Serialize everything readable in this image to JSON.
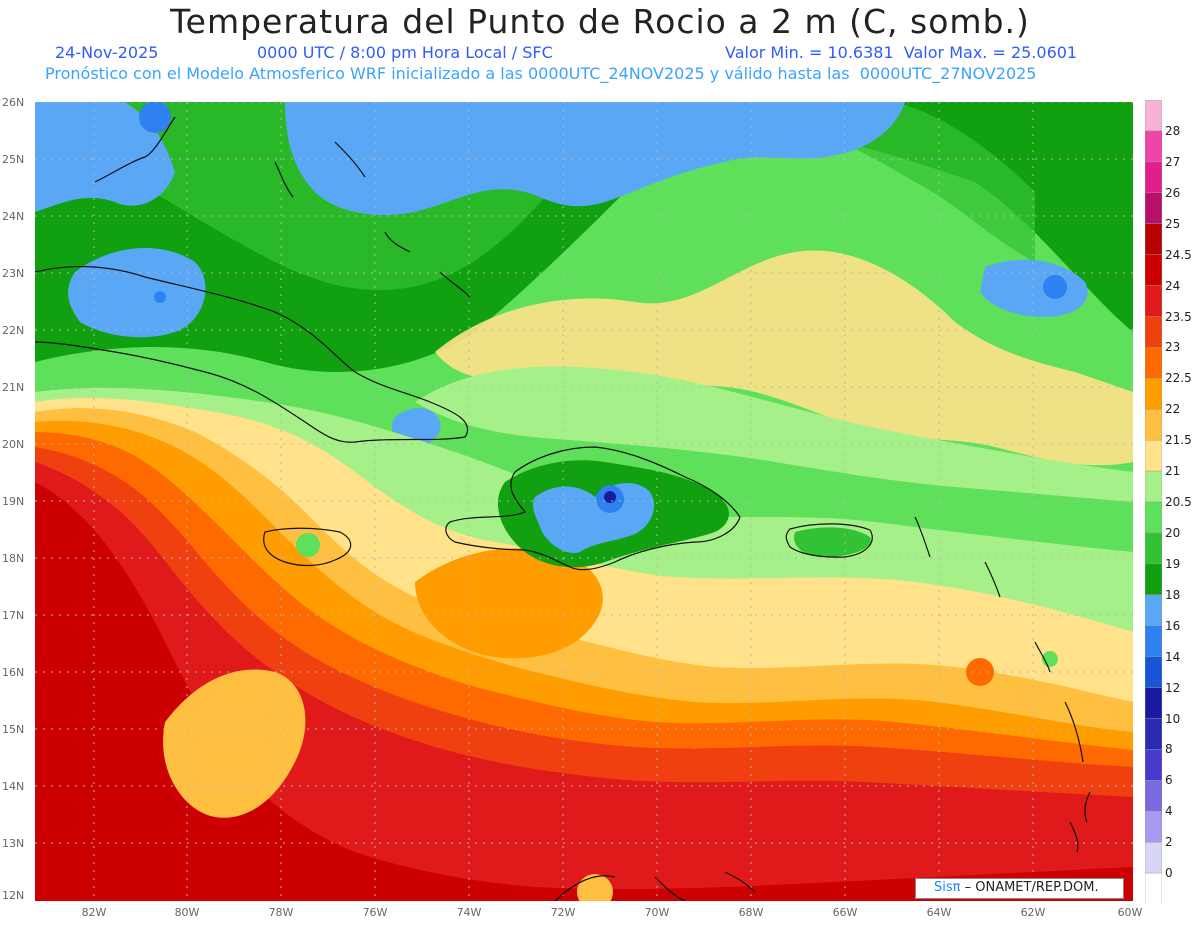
{
  "header": {
    "title": "Temperatura del Punto de Rocio a 2 m (C, somb.)",
    "date": "24-Nov-2025",
    "time": "0000 UTC / 8:00 pm Hora Local / SFC",
    "minmax": "Valor Min. = 10.6381  Valor Max. = 25.0601",
    "model": "Pronóstico con el Modelo Atmosferico WRF inicializado a las 0000UTC_24NOV2025 y válido hasta las  0000UTC_27NOV2025"
  },
  "axes": {
    "lat_labels": [
      "26N",
      "25N",
      "24N",
      "23N",
      "22N",
      "21N",
      "20N",
      "19N",
      "18N",
      "17N",
      "16N",
      "15N",
      "14N",
      "13N",
      "12N"
    ],
    "lon_labels": [
      "82W",
      "80W",
      "78W",
      "76W",
      "74W",
      "72W",
      "70W",
      "68W",
      "66W",
      "64W",
      "62W",
      "60W"
    ]
  },
  "colorbar": {
    "labels": [
      "28",
      "27",
      "26",
      "25",
      "24.5",
      "24",
      "23.5",
      "23",
      "22.5",
      "22",
      "21.5",
      "21",
      "20.5",
      "20",
      "19",
      "18",
      "16",
      "14",
      "12",
      "10",
      "8",
      "6",
      "4",
      "2",
      "0"
    ],
    "colors": [
      "#f7b3d6",
      "#ee44a8",
      "#e0208a",
      "#b8106a",
      "#b80000",
      "#cc0000",
      "#e01a1a",
      "#f04010",
      "#ff6a00",
      "#ff9c00",
      "#ffbf40",
      "#ffe28a",
      "#a6f08a",
      "#5ee05a",
      "#33c233",
      "#10a010",
      "#5aa8f5",
      "#2f80f0",
      "#1655d8",
      "#1a1aa0",
      "#2a2ab0",
      "#4a3acc",
      "#7a6ae0",
      "#a89af0",
      "#d8d6f6",
      "#ffffff"
    ]
  },
  "logo": {
    "brand": "Sisπ",
    "text": " – ONAMET/REP.DOM."
  },
  "colors": {
    "title": "#222222",
    "subtitle": "#2f5bff",
    "model_line": "#3aa3ff"
  }
}
